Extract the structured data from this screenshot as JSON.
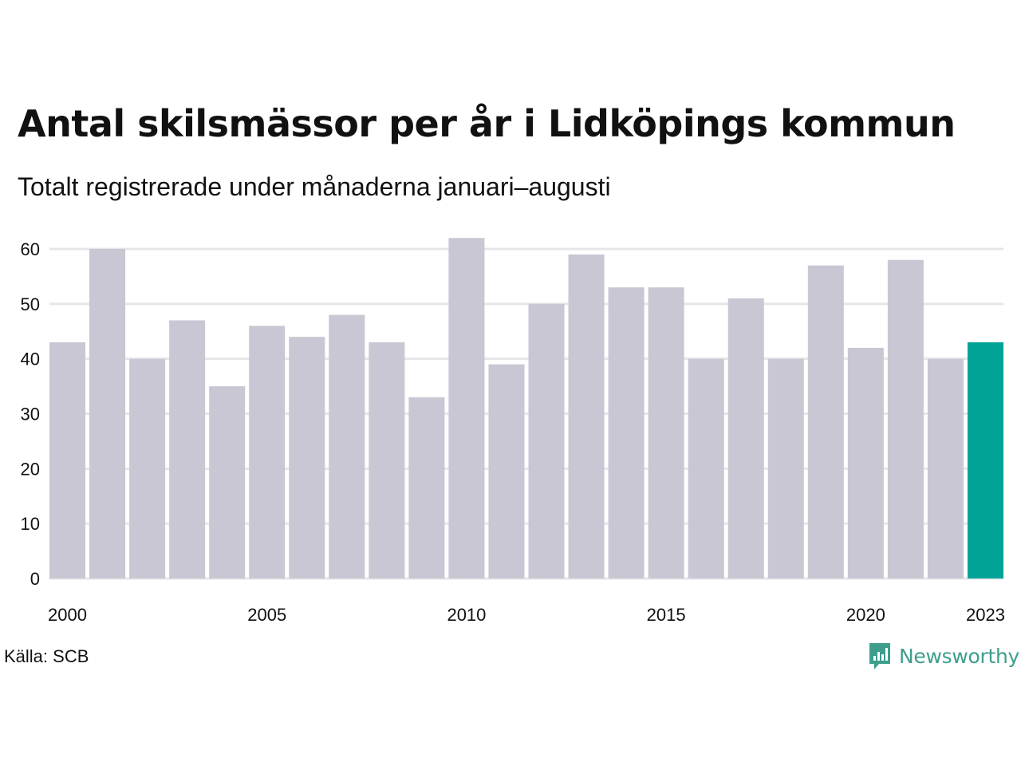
{
  "title": "Antal skilsmässor per år i Lidköpings kommun",
  "subtitle": "Totalt registrerade under månaderna januari–augusti",
  "source": "Källa: SCB",
  "brand": "Newsworthy",
  "colors": {
    "bar": "#c9c7d3",
    "highlight": "#00a396",
    "grid": "#e6e6e9",
    "text": "#111111",
    "brand": "#3e9e8c"
  },
  "icons": {
    "brand_logo": "newsworthy-logo-icon"
  },
  "chart_data": {
    "type": "bar",
    "categories": [
      "2000",
      "2001",
      "2002",
      "2003",
      "2004",
      "2005",
      "2006",
      "2007",
      "2008",
      "2009",
      "2010",
      "2011",
      "2012",
      "2013",
      "2014",
      "2015",
      "2016",
      "2017",
      "2018",
      "2019",
      "2020",
      "2021",
      "2022",
      "2023"
    ],
    "values": [
      43,
      60,
      40,
      47,
      35,
      46,
      44,
      48,
      43,
      33,
      62,
      39,
      50,
      59,
      53,
      53,
      40,
      51,
      40,
      57,
      42,
      58,
      40,
      43
    ],
    "highlight_category": "2023",
    "x_tick_labels": [
      "2000",
      "2005",
      "2010",
      "2015",
      "2020",
      "2023"
    ],
    "y_ticks": [
      0,
      10,
      20,
      30,
      40,
      50,
      60
    ],
    "ylim": [
      0,
      60
    ],
    "grid": true,
    "legend": "none"
  }
}
